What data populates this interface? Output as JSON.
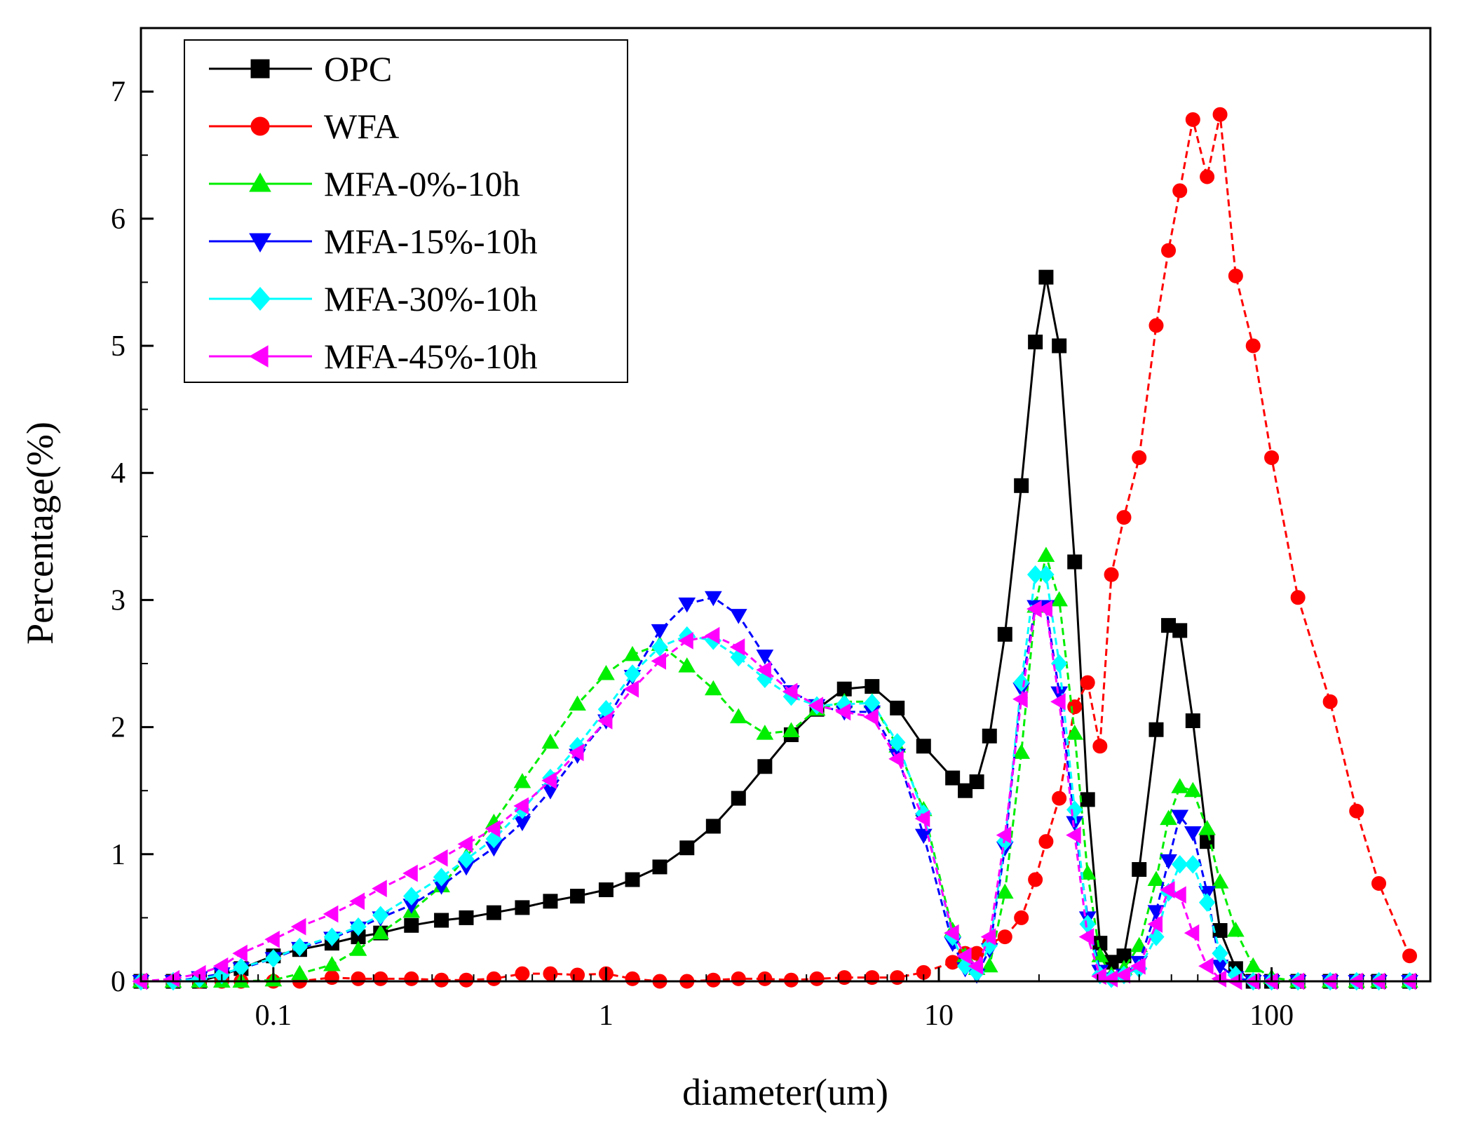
{
  "chart_data": {
    "type": "line",
    "title": "",
    "xlabel": "diameter(um)",
    "ylabel": "Percentage(%)",
    "x_scale": "log",
    "xlim": [
      0.04,
      300
    ],
    "ylim": [
      0,
      7.5
    ],
    "x_ticks": [
      0.1,
      1,
      10,
      100
    ],
    "x_tick_labels": [
      "0.1",
      "1",
      "10",
      "100"
    ],
    "y_ticks": [
      0,
      1,
      2,
      3,
      4,
      5,
      6,
      7
    ],
    "y_tick_labels": [
      "0",
      "1",
      "2",
      "3",
      "4",
      "5",
      "6",
      "7"
    ],
    "legend_position": "top-left",
    "grid": false,
    "series": [
      {
        "name": "OPC",
        "color": "#000000",
        "marker": "square",
        "x": [
          0.04,
          0.05,
          0.06,
          0.07,
          0.08,
          0.1,
          0.12,
          0.15,
          0.18,
          0.21,
          0.26,
          0.32,
          0.38,
          0.46,
          0.56,
          0.68,
          0.82,
          1.0,
          1.2,
          1.45,
          1.75,
          2.1,
          2.5,
          3.0,
          3.6,
          4.3,
          5.2,
          6.3,
          7.5,
          9.0,
          11.0,
          12.0,
          13.0,
          14.2,
          15.8,
          17.7,
          19.5,
          21.0,
          23.0,
          25.6,
          28.0,
          30.5,
          33.0,
          36.0,
          40.0,
          45.0,
          49.0,
          53.0,
          58.0,
          64.0,
          70.0,
          78.0,
          88.0,
          100.0,
          120.0,
          150.0,
          180.0,
          210.0,
          260.0
        ],
        "y": [
          0,
          0,
          0,
          0.05,
          0.1,
          0.2,
          0.25,
          0.3,
          0.35,
          0.38,
          0.44,
          0.48,
          0.5,
          0.54,
          0.58,
          0.63,
          0.67,
          0.72,
          0.8,
          0.9,
          1.05,
          1.22,
          1.44,
          1.69,
          1.94,
          2.14,
          2.3,
          2.32,
          2.15,
          1.85,
          1.6,
          1.5,
          1.57,
          1.93,
          2.73,
          3.9,
          5.03,
          5.54,
          5.0,
          3.3,
          1.43,
          0.3,
          0.15,
          0.2,
          0.88,
          1.98,
          2.8,
          2.76,
          2.05,
          1.1,
          0.4,
          0.1,
          0,
          0,
          0,
          0,
          0,
          0,
          0
        ]
      },
      {
        "name": "WFA",
        "color": "#ff0000",
        "marker": "circle",
        "x": [
          0.04,
          0.05,
          0.06,
          0.07,
          0.08,
          0.1,
          0.12,
          0.15,
          0.18,
          0.21,
          0.26,
          0.32,
          0.38,
          0.46,
          0.56,
          0.68,
          0.82,
          1.0,
          1.2,
          1.45,
          1.75,
          2.1,
          2.5,
          3.0,
          3.6,
          4.3,
          5.2,
          6.3,
          7.5,
          9.0,
          11.0,
          12.0,
          13.0,
          14.2,
          15.8,
          17.7,
          19.5,
          21.0,
          23.0,
          25.6,
          28.0,
          30.5,
          33.0,
          36.0,
          40.0,
          45.0,
          49.0,
          53.0,
          58.0,
          64.0,
          70.0,
          78.0,
          88.0,
          100.0,
          120.0,
          150.0,
          180.0,
          210.0,
          260.0
        ],
        "y": [
          0,
          0,
          0,
          0,
          0,
          0,
          0,
          0.03,
          0.02,
          0.02,
          0.02,
          0.01,
          0.01,
          0.02,
          0.06,
          0.06,
          0.05,
          0.06,
          0.02,
          0,
          0,
          0.01,
          0.02,
          0.02,
          0.01,
          0.02,
          0.03,
          0.03,
          0.03,
          0.07,
          0.15,
          0.22,
          0.22,
          0.3,
          0.35,
          0.5,
          0.8,
          1.1,
          1.44,
          2.16,
          2.35,
          1.85,
          3.2,
          3.65,
          4.12,
          5.16,
          5.75,
          6.22,
          6.78,
          6.33,
          6.82,
          5.55,
          5.0,
          4.12,
          3.02,
          2.2,
          1.34,
          0.77,
          0.2
        ]
      },
      {
        "name": "MFA-0%-10h",
        "color": "#00ee00",
        "marker": "triangle-up",
        "x": [
          0.04,
          0.05,
          0.06,
          0.07,
          0.08,
          0.1,
          0.12,
          0.15,
          0.18,
          0.21,
          0.26,
          0.32,
          0.38,
          0.46,
          0.56,
          0.68,
          0.82,
          1.0,
          1.2,
          1.45,
          1.75,
          2.1,
          2.5,
          3.0,
          3.6,
          4.3,
          5.2,
          6.3,
          7.5,
          9.0,
          11.0,
          12.0,
          13.0,
          14.2,
          15.8,
          17.7,
          19.5,
          21.0,
          23.0,
          25.6,
          28.0,
          30.5,
          33.0,
          36.0,
          40.0,
          45.0,
          49.0,
          53.0,
          58.0,
          64.0,
          70.0,
          78.0,
          88.0,
          100.0,
          120.0,
          150.0,
          180.0,
          210.0,
          260.0
        ],
        "y": [
          0,
          0,
          0,
          0,
          0,
          0.01,
          0.06,
          0.13,
          0.25,
          0.38,
          0.55,
          0.75,
          0.98,
          1.25,
          1.57,
          1.88,
          2.18,
          2.42,
          2.57,
          2.65,
          2.48,
          2.3,
          2.08,
          1.95,
          1.97,
          2.14,
          2.2,
          2.2,
          1.85,
          1.35,
          0.4,
          0.2,
          0.1,
          0.12,
          0.7,
          1.8,
          2.95,
          3.35,
          3.0,
          1.95,
          0.85,
          0.2,
          0.05,
          0.1,
          0.28,
          0.8,
          1.28,
          1.53,
          1.5,
          1.2,
          0.78,
          0.4,
          0.12,
          0.03,
          0,
          0,
          0,
          0,
          0
        ]
      },
      {
        "name": "MFA-15%-10h",
        "color": "#0000ff",
        "marker": "triangle-down",
        "x": [
          0.04,
          0.05,
          0.06,
          0.07,
          0.08,
          0.1,
          0.12,
          0.15,
          0.18,
          0.21,
          0.26,
          0.32,
          0.38,
          0.46,
          0.56,
          0.68,
          0.82,
          1.0,
          1.2,
          1.45,
          1.75,
          2.1,
          2.5,
          3.0,
          3.6,
          4.3,
          5.2,
          6.3,
          7.5,
          9.0,
          11.0,
          12.0,
          13.0,
          14.2,
          15.8,
          17.7,
          19.5,
          21.0,
          23.0,
          25.6,
          28.0,
          30.5,
          33.0,
          36.0,
          40.0,
          45.0,
          49.0,
          53.0,
          58.0,
          64.0,
          70.0,
          78.0,
          88.0,
          100.0,
          120.0,
          150.0,
          180.0,
          210.0,
          260.0
        ],
        "y": [
          0,
          0,
          0.03,
          0.06,
          0.1,
          0.18,
          0.26,
          0.34,
          0.42,
          0.5,
          0.6,
          0.75,
          0.9,
          1.05,
          1.25,
          1.5,
          1.78,
          2.05,
          2.4,
          2.76,
          2.97,
          3.02,
          2.88,
          2.56,
          2.28,
          2.17,
          2.12,
          2.12,
          1.78,
          1.15,
          0.3,
          0.1,
          0.05,
          0.25,
          1.05,
          2.3,
          2.95,
          2.95,
          2.27,
          1.25,
          0.5,
          0.08,
          0.02,
          0.05,
          0.15,
          0.55,
          0.95,
          1.3,
          1.17,
          0.7,
          0.12,
          0.03,
          0,
          0,
          0,
          0,
          0,
          0,
          0
        ]
      },
      {
        "name": "MFA-30%-10h",
        "color": "#00ffff",
        "marker": "diamond",
        "x": [
          0.04,
          0.05,
          0.06,
          0.07,
          0.08,
          0.1,
          0.12,
          0.15,
          0.18,
          0.21,
          0.26,
          0.32,
          0.38,
          0.46,
          0.56,
          0.68,
          0.82,
          1.0,
          1.2,
          1.45,
          1.75,
          2.1,
          2.5,
          3.0,
          3.6,
          4.3,
          5.2,
          6.3,
          7.5,
          9.0,
          11.0,
          12.0,
          13.0,
          14.2,
          15.8,
          17.7,
          19.5,
          21.0,
          23.0,
          25.6,
          28.0,
          30.5,
          33.0,
          36.0,
          40.0,
          45.0,
          49.0,
          53.0,
          58.0,
          64.0,
          70.0,
          78.0,
          88.0,
          100.0,
          120.0,
          150.0,
          180.0,
          210.0,
          260.0
        ],
        "y": [
          0,
          0,
          0.02,
          0.05,
          0.11,
          0.18,
          0.27,
          0.35,
          0.43,
          0.52,
          0.67,
          0.82,
          0.96,
          1.12,
          1.35,
          1.6,
          1.85,
          2.14,
          2.42,
          2.63,
          2.72,
          2.68,
          2.55,
          2.38,
          2.24,
          2.17,
          2.18,
          2.19,
          1.88,
          1.32,
          0.35,
          0.12,
          0.07,
          0.28,
          1.1,
          2.35,
          3.2,
          3.2,
          2.5,
          1.35,
          0.45,
          0.05,
          0.02,
          0.05,
          0.1,
          0.35,
          0.7,
          0.92,
          0.92,
          0.62,
          0.22,
          0.05,
          0,
          0,
          0,
          0,
          0,
          0,
          0
        ]
      },
      {
        "name": "MFA-45%-10h",
        "color": "#ff00ff",
        "marker": "triangle-left",
        "x": [
          0.04,
          0.05,
          0.06,
          0.07,
          0.08,
          0.1,
          0.12,
          0.15,
          0.18,
          0.21,
          0.26,
          0.32,
          0.38,
          0.46,
          0.56,
          0.68,
          0.82,
          1.0,
          1.2,
          1.45,
          1.75,
          2.1,
          2.5,
          3.0,
          3.6,
          4.3,
          5.2,
          6.3,
          7.5,
          9.0,
          11.0,
          12.0,
          13.0,
          14.2,
          15.8,
          17.7,
          19.5,
          21.0,
          23.0,
          25.6,
          28.0,
          30.5,
          33.0,
          36.0,
          40.0,
          45.0,
          49.0,
          53.0,
          58.0,
          64.0,
          70.0,
          78.0,
          88.0,
          100.0,
          120.0,
          150.0,
          180.0,
          210.0,
          260.0
        ],
        "y": [
          0,
          0.02,
          0.06,
          0.12,
          0.22,
          0.33,
          0.43,
          0.53,
          0.63,
          0.73,
          0.85,
          0.97,
          1.08,
          1.2,
          1.38,
          1.58,
          1.8,
          2.05,
          2.3,
          2.52,
          2.68,
          2.72,
          2.63,
          2.45,
          2.28,
          2.17,
          2.12,
          2.08,
          1.75,
          1.28,
          0.38,
          0.2,
          0.12,
          0.35,
          1.15,
          2.22,
          2.93,
          2.93,
          2.2,
          1.15,
          0.35,
          0.04,
          0.02,
          0.05,
          0.12,
          0.45,
          0.72,
          0.68,
          0.38,
          0.12,
          0.02,
          0,
          0,
          0,
          0,
          0,
          0,
          0,
          0
        ]
      }
    ]
  }
}
